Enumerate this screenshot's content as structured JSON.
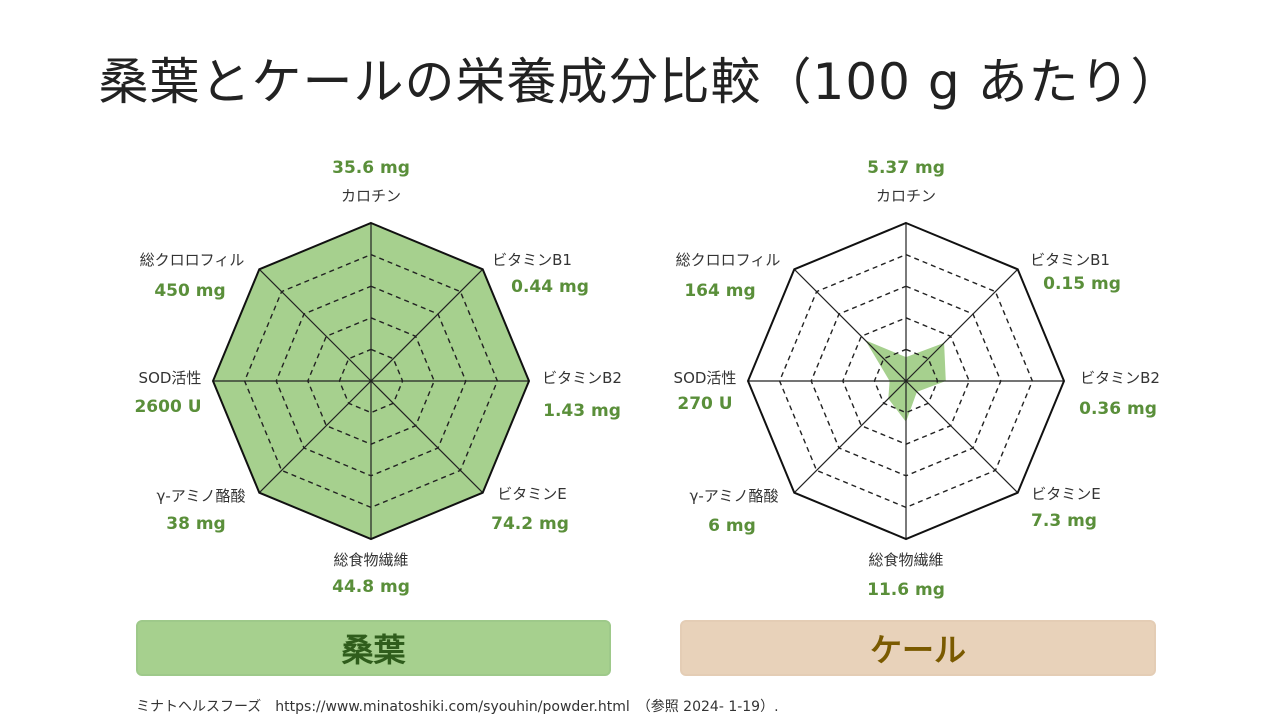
{
  "title": "桑葉とケールの栄養成分比較（100 g あたり）",
  "source": "ミナトヘルスフーズ　https://www.minatoshiki.com/syouhin/powder.html　（参照 2024- 1-19）.",
  "colors": {
    "fill": "#a6d08e",
    "fill_stroke": "#7fb566",
    "value_text": "#5a8f3a",
    "banner_left_bg": "#a6d08e",
    "banner_left_text": "#2f5d1c",
    "banner_right_bg": "#e8d2ba",
    "banner_right_text": "#7a5a00"
  },
  "chart_data": [
    {
      "type": "radar",
      "name": "桑葉",
      "axes": [
        "カロチン",
        "ビタミンB1",
        "ビタミンB2",
        "ビタミンE",
        "総食物繊維",
        "γ-アミノ酪酸",
        "SOD活性",
        "総クロロフィル"
      ],
      "value_labels": [
        "35.6 mg",
        "0.44 mg",
        "1.43 mg",
        "74.2 mg",
        "44.8 mg",
        "38 mg",
        "2600 U",
        "450 mg"
      ],
      "values": [
        35.6,
        0.44,
        1.43,
        74.2,
        44.8,
        38,
        2600,
        450
      ],
      "normalized": [
        1,
        1,
        1,
        1,
        1,
        1,
        1,
        1
      ],
      "grid_levels": 5,
      "grid": true
    },
    {
      "type": "radar",
      "name": "ケール",
      "axes": [
        "カロチン",
        "ビタミンB1",
        "ビタミンB2",
        "ビタミンE",
        "総食物繊維",
        "γ-アミノ酪酸",
        "SOD活性",
        "総クロロフィル"
      ],
      "value_labels": [
        "5.37 mg",
        "0.15 mg",
        "0.36 mg",
        "7.3 mg",
        "11.6 mg",
        "6  mg",
        "270 U",
        "164 mg"
      ],
      "values": [
        5.37,
        0.15,
        0.36,
        7.3,
        11.6,
        6,
        270,
        164
      ],
      "normalized": [
        0.151,
        0.341,
        0.252,
        0.098,
        0.259,
        0.158,
        0.104,
        0.364
      ],
      "grid_levels": 5,
      "grid": true
    }
  ]
}
